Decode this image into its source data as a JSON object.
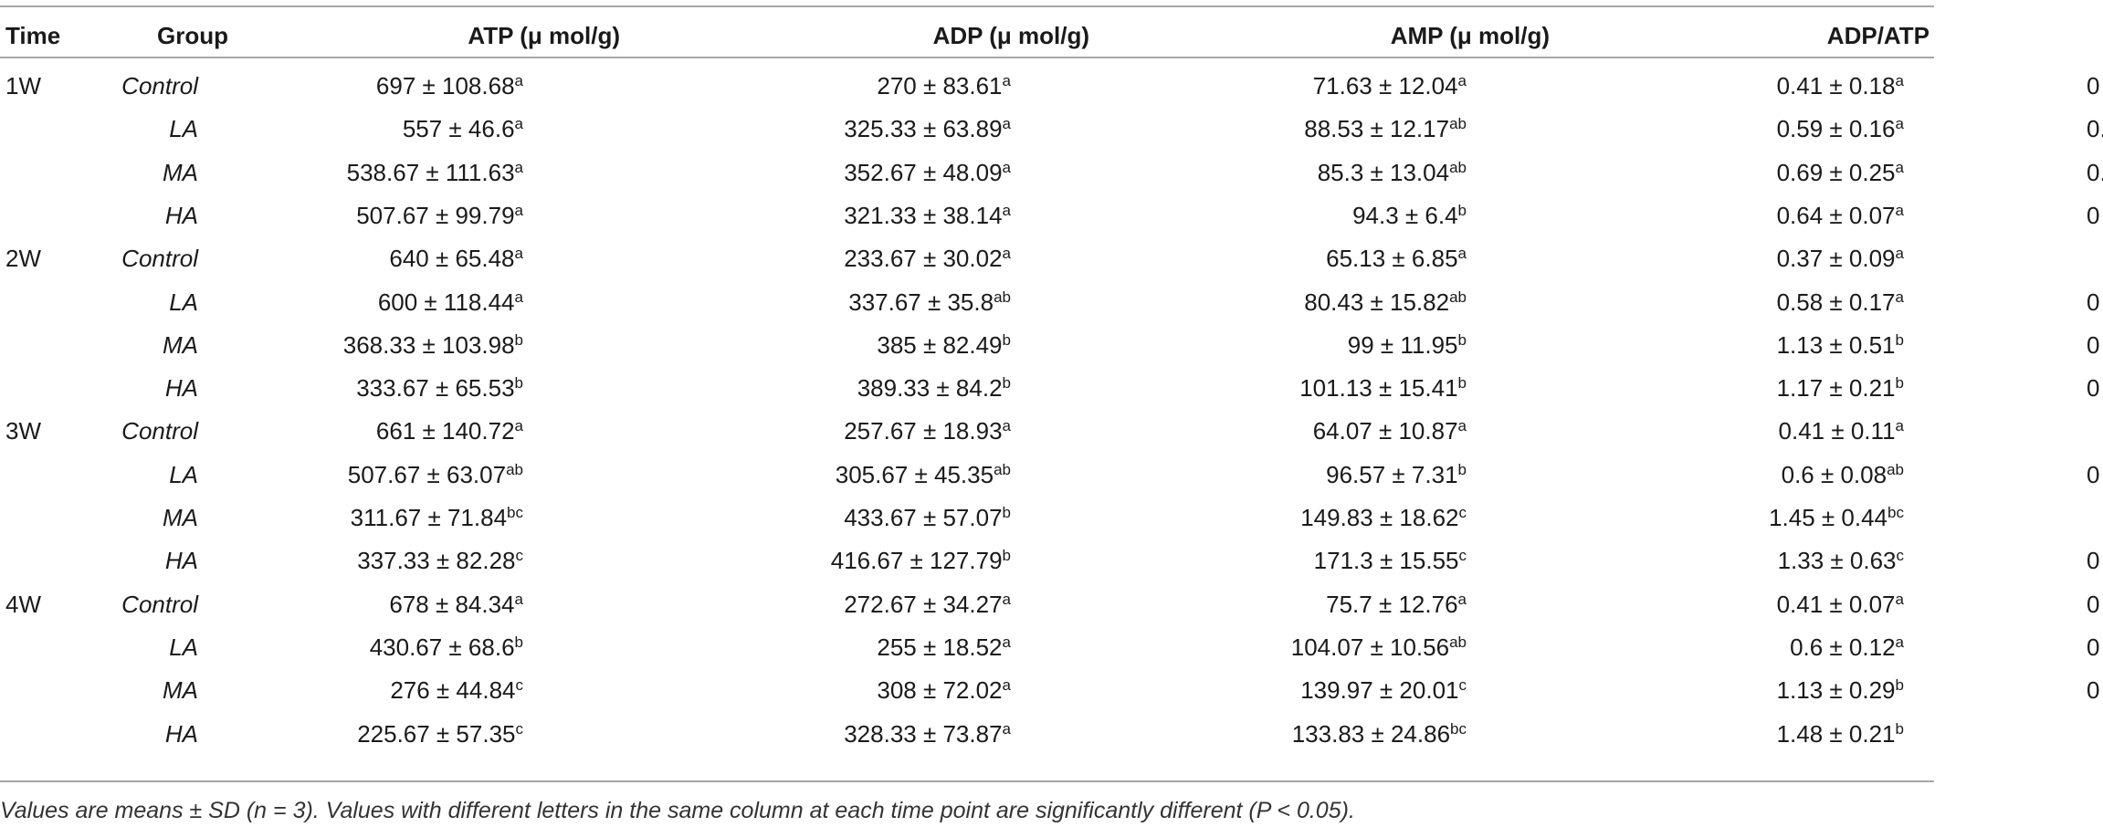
{
  "table": {
    "headers": {
      "time": "Time",
      "group": "Group",
      "atp": "ATP (μ mol/g)",
      "adp": "ADP (μ mol/g)",
      "amp": "AMP (μ mol/g)",
      "ratio": "ADP/ATP"
    },
    "rows": [
      {
        "time": "1W",
        "group": "Control",
        "atp": "697 ± 108.68",
        "atp_sup": "a",
        "adp": "270 ± 83.61",
        "adp_sup": "a",
        "amp": "71.63 ± 12.04",
        "amp_sup": "a",
        "ratio": "0.41 ± 0.18",
        "ratio_sup": "a",
        "cutoff": "0"
      },
      {
        "time": "",
        "group": "LA",
        "atp": "557 ± 46.6",
        "atp_sup": "a",
        "adp": "325.33 ± 63.89",
        "adp_sup": "a",
        "amp": "88.53 ± 12.17",
        "amp_sup": "ab",
        "ratio": "0.59 ± 0.16",
        "ratio_sup": "a",
        "cutoff": "0."
      },
      {
        "time": "",
        "group": "MA",
        "atp": "538.67 ± 111.63",
        "atp_sup": "a",
        "adp": "352.67 ± 48.09",
        "adp_sup": "a",
        "amp": "85.3 ± 13.04",
        "amp_sup": "ab",
        "ratio": "0.69 ± 0.25",
        "ratio_sup": "a",
        "cutoff": "0."
      },
      {
        "time": "",
        "group": "HA",
        "atp": "507.67 ± 99.79",
        "atp_sup": "a",
        "adp": "321.33 ± 38.14",
        "adp_sup": "a",
        "amp": "94.3 ± 6.4",
        "amp_sup": "b",
        "ratio": "0.64 ± 0.07",
        "ratio_sup": "a",
        "cutoff": "0"
      },
      {
        "time": "2W",
        "group": "Control",
        "atp": "640 ± 65.48",
        "atp_sup": "a",
        "adp": "233.67 ± 30.02",
        "adp_sup": "a",
        "amp": "65.13 ± 6.85",
        "amp_sup": "a",
        "ratio": "0.37 ± 0.09",
        "ratio_sup": "a",
        "cutoff": ""
      },
      {
        "time": "",
        "group": "LA",
        "atp": "600 ± 118.44",
        "atp_sup": "a",
        "adp": "337.67 ± 35.8",
        "adp_sup": "ab",
        "amp": "80.43 ± 15.82",
        "amp_sup": "ab",
        "ratio": "0.58 ± 0.17",
        "ratio_sup": "a",
        "cutoff": "0"
      },
      {
        "time": "",
        "group": "MA",
        "atp": "368.33 ± 103.98",
        "atp_sup": "b",
        "adp": "385 ± 82.49",
        "adp_sup": "b",
        "amp": "99 ± 11.95",
        "amp_sup": "b",
        "ratio": "1.13 ± 0.51",
        "ratio_sup": "b",
        "cutoff": "0"
      },
      {
        "time": "",
        "group": "HA",
        "atp": "333.67 ± 65.53",
        "atp_sup": "b",
        "adp": "389.33 ± 84.2",
        "adp_sup": "b",
        "amp": "101.13 ± 15.41",
        "amp_sup": "b",
        "ratio": "1.17 ± 0.21",
        "ratio_sup": "b",
        "cutoff": "0"
      },
      {
        "time": "3W",
        "group": "Control",
        "atp": "661 ± 140.72",
        "atp_sup": "a",
        "adp": "257.67 ± 18.93",
        "adp_sup": "a",
        "amp": "64.07 ± 10.87",
        "amp_sup": "a",
        "ratio": "0.41 ± 0.11",
        "ratio_sup": "a",
        "cutoff": ""
      },
      {
        "time": "",
        "group": "LA",
        "atp": "507.67 ± 63.07",
        "atp_sup": "ab",
        "adp": "305.67 ± 45.35",
        "adp_sup": "ab",
        "amp": "96.57 ± 7.31",
        "amp_sup": "b",
        "ratio": "0.6 ± 0.08",
        "ratio_sup": "ab",
        "cutoff": "0"
      },
      {
        "time": "",
        "group": "MA",
        "atp": "311.67 ± 71.84",
        "atp_sup": "bc",
        "adp": "433.67 ± 57.07",
        "adp_sup": "b",
        "amp": "149.83 ± 18.62",
        "amp_sup": "c",
        "ratio": "1.45 ± 0.44",
        "ratio_sup": "bc",
        "cutoff": ""
      },
      {
        "time": "",
        "group": "HA",
        "atp": "337.33 ± 82.28",
        "atp_sup": "c",
        "adp": "416.67 ± 127.79",
        "adp_sup": "b",
        "amp": "171.3 ± 15.55",
        "amp_sup": "c",
        "ratio": "1.33 ± 0.63",
        "ratio_sup": "c",
        "cutoff": "0"
      },
      {
        "time": "4W",
        "group": "Control",
        "atp": "678 ± 84.34",
        "atp_sup": "a",
        "adp": "272.67 ± 34.27",
        "adp_sup": "a",
        "amp": "75.7 ± 12.76",
        "amp_sup": "a",
        "ratio": "0.41 ± 0.07",
        "ratio_sup": "a",
        "cutoff": "0"
      },
      {
        "time": "",
        "group": "LA",
        "atp": "430.67 ± 68.6",
        "atp_sup": "b",
        "adp": "255 ± 18.52",
        "adp_sup": "a",
        "amp": "104.07 ± 10.56",
        "amp_sup": "ab",
        "ratio": "0.6 ± 0.12",
        "ratio_sup": "a",
        "cutoff": "0"
      },
      {
        "time": "",
        "group": "MA",
        "atp": "276 ± 44.84",
        "atp_sup": "c",
        "adp": "308 ± 72.02",
        "adp_sup": "a",
        "amp": "139.97 ± 20.01",
        "amp_sup": "c",
        "ratio": "1.13 ± 0.29",
        "ratio_sup": "b",
        "cutoff": "0"
      },
      {
        "time": "",
        "group": "HA",
        "atp": "225.67 ± 57.35",
        "atp_sup": "c",
        "adp": "328.33 ± 73.87",
        "adp_sup": "a",
        "amp": "133.83 ± 24.86",
        "amp_sup": "bc",
        "ratio": "1.48 ± 0.21",
        "ratio_sup": "b",
        "cutoff": ""
      }
    ]
  },
  "footnote": "Values are means ± SD (n = 3). Values with different letters in the same column at each time point are significantly different (P < 0.05)."
}
